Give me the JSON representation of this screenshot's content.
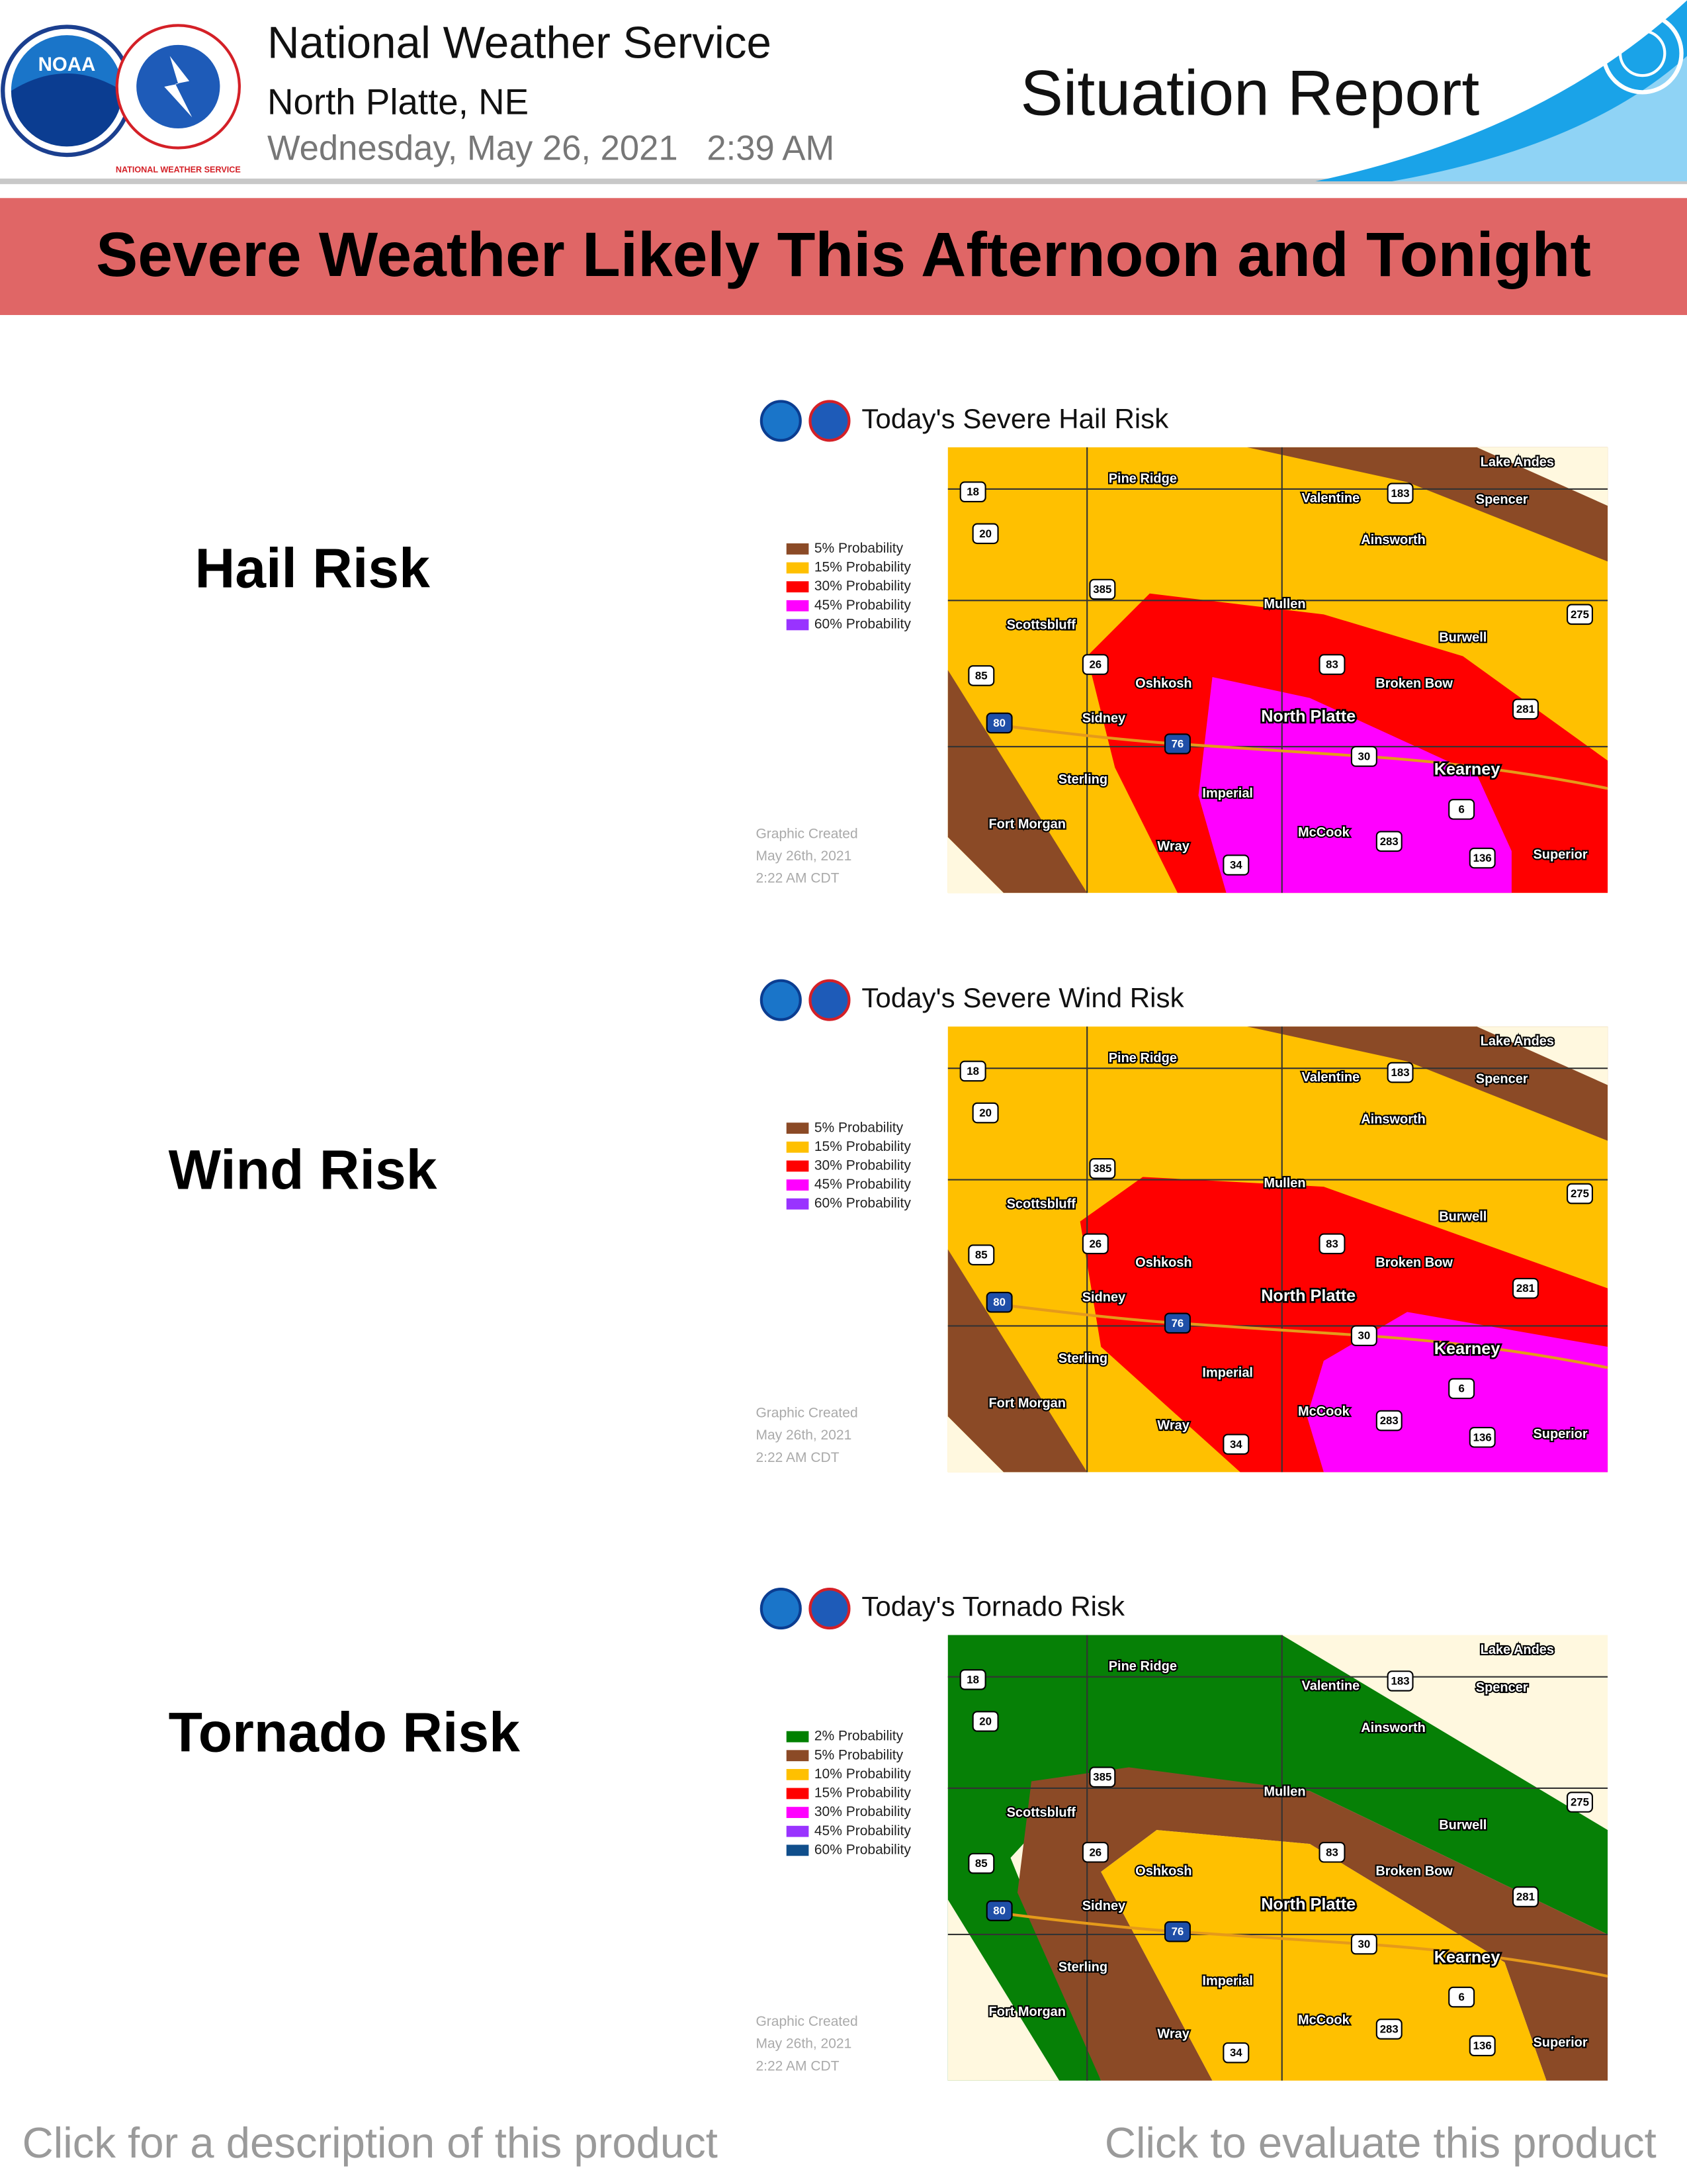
{
  "header": {
    "agency": "National Weather Service",
    "office": "North Platte, NE",
    "date_time": "Wednesday, May 26, 2021   2:39 AM",
    "product_title": "Situation Report",
    "noaa_logo": "NOAA",
    "nws_logo": "NATIONAL WEATHER SERVICE"
  },
  "banner": "Severe Weather Likely This Afternoon and Tonight",
  "map_labels": {
    "places": [
      "Pine Ridge",
      "Valentine",
      "Lake Andes",
      "Spencer",
      "Ainsworth",
      "Mullen",
      "Burwell",
      "Scottsbluff",
      "Oshkosh",
      "Broken Bow",
      "North Platte",
      "Sidney",
      "Kearney",
      "Sterling",
      "Imperial",
      "Fort Morgan",
      "McCook",
      "Wray",
      "Superior"
    ],
    "shields": [
      18,
      20,
      385,
      275,
      183,
      85,
      26,
      83,
      281,
      80,
      76,
      30,
      6,
      283,
      34,
      136
    ]
  },
  "graphic_note": [
    "Graphic Created",
    "May 26th, 2021",
    "2:22 AM CDT"
  ],
  "sections": [
    {
      "label": "Hail Risk",
      "map_title": "Today's Severe Hail Risk",
      "legend": [
        {
          "label": "5% Probability",
          "color": "#8b4a26"
        },
        {
          "label": "15% Probability",
          "color": "#ffc000"
        },
        {
          "label": "30% Probability",
          "color": "#ff0000"
        },
        {
          "label": "45% Probability",
          "color": "#ff00ff"
        },
        {
          "label": "60% Probability",
          "color": "#9933ff"
        }
      ]
    },
    {
      "label": "Wind Risk",
      "map_title": "Today's Severe Wind Risk",
      "legend": [
        {
          "label": "5% Probability",
          "color": "#8b4a26"
        },
        {
          "label": "15% Probability",
          "color": "#ffc000"
        },
        {
          "label": "30% Probability",
          "color": "#ff0000"
        },
        {
          "label": "45% Probability",
          "color": "#ff00ff"
        },
        {
          "label": "60% Probability",
          "color": "#9933ff"
        }
      ]
    },
    {
      "label": "Tornado Risk",
      "map_title": "Today's Tornado Risk",
      "legend": [
        {
          "label": "2% Probability",
          "color": "#008000"
        },
        {
          "label": "5% Probability",
          "color": "#8b4a26"
        },
        {
          "label": "10% Probability",
          "color": "#ffc000"
        },
        {
          "label": "15% Probability",
          "color": "#ff0000"
        },
        {
          "label": "30% Probability",
          "color": "#ff00ff"
        },
        {
          "label": "45% Probability",
          "color": "#9933ff"
        },
        {
          "label": "60% Probability",
          "color": "#104e8b"
        }
      ]
    }
  ],
  "footer": {
    "left": "Click for a description of this product",
    "right": "Click to evaluate this product"
  }
}
